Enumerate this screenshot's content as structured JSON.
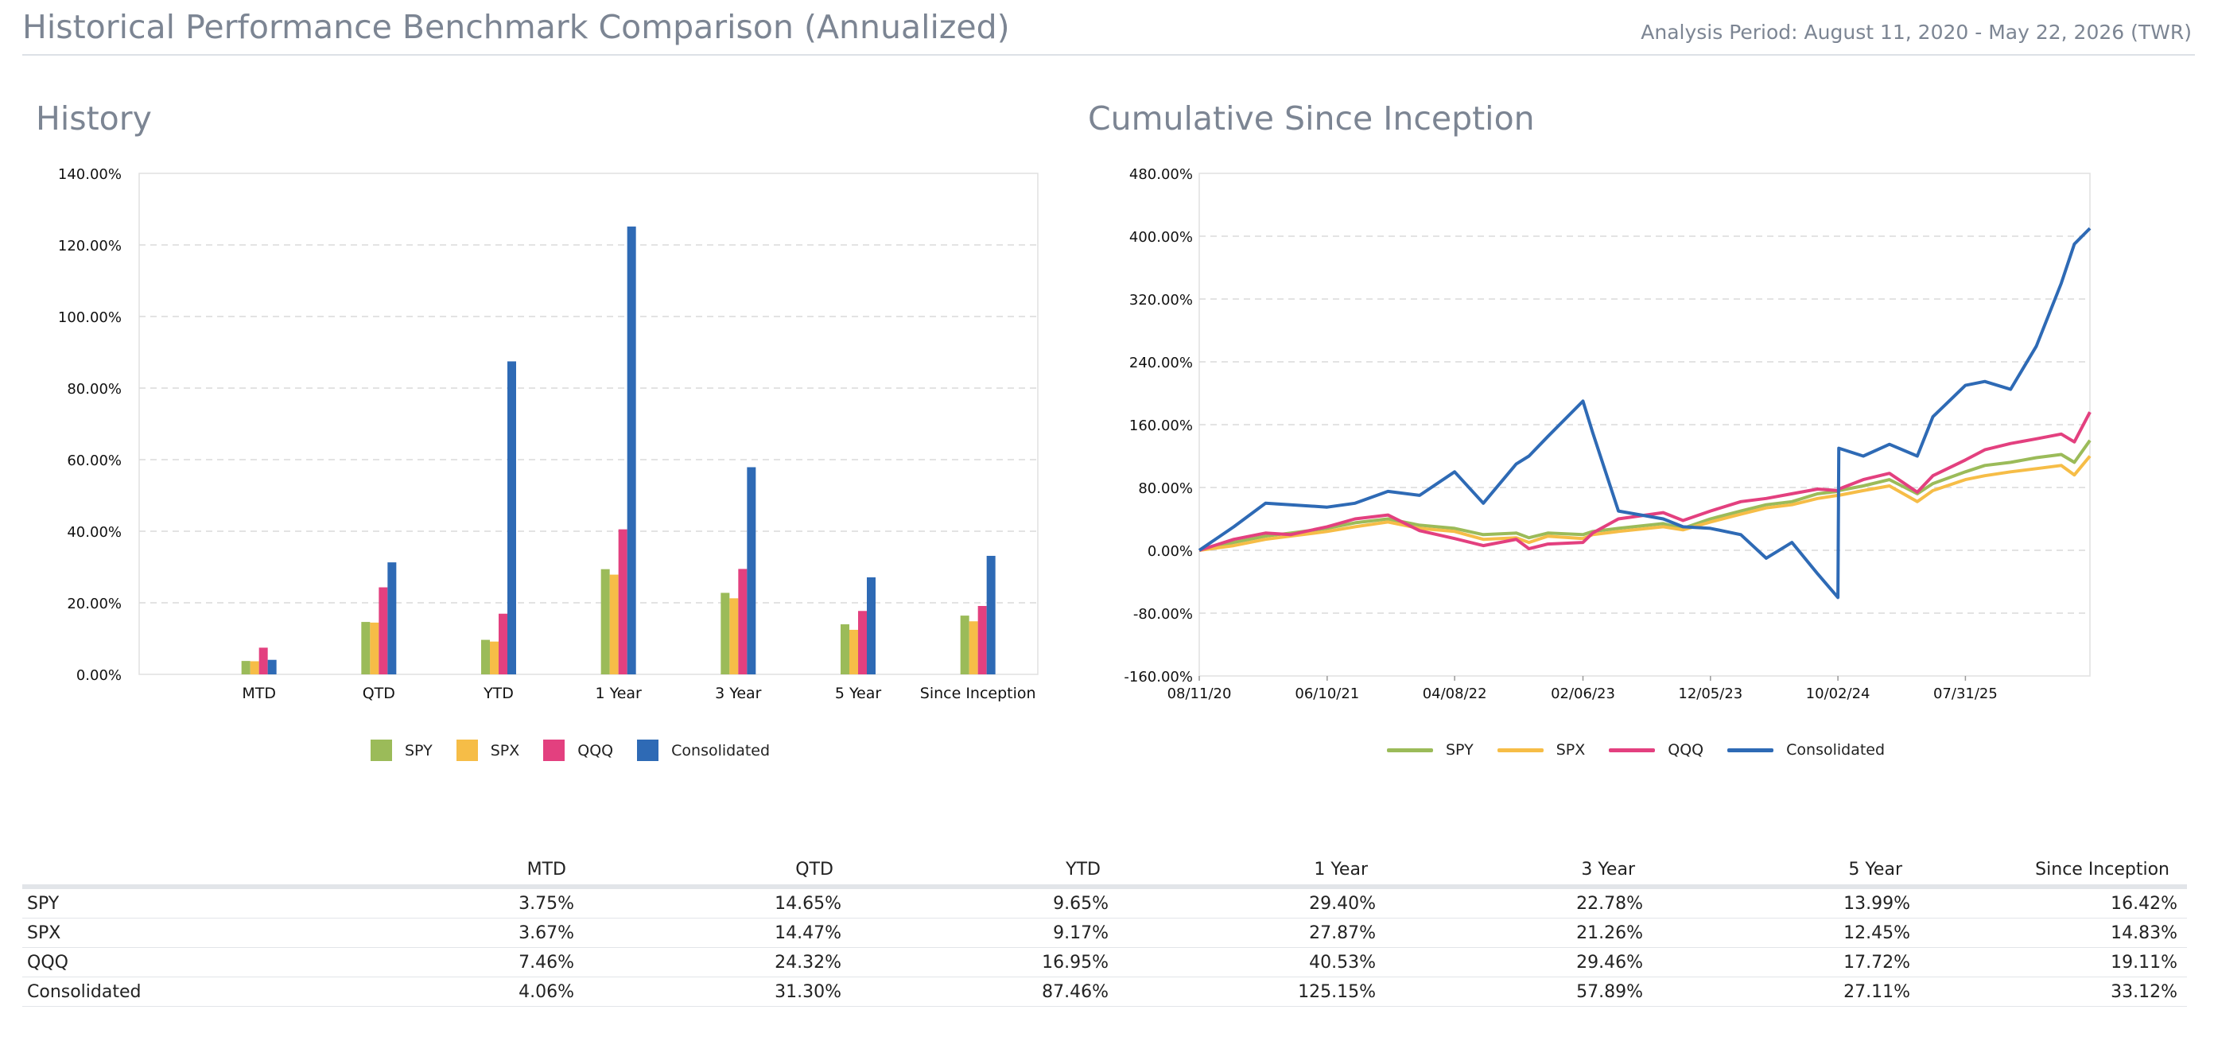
{
  "header": {
    "title": "Historical Performance Benchmark Comparison (Annualized)",
    "period": "Analysis Period: August 11, 2020 - May 22, 2026 (TWR)"
  },
  "history": {
    "title": "History"
  },
  "cumulative": {
    "title": "Cumulative Since Inception"
  },
  "colors": {
    "SPY": "#9bbb59",
    "SPX": "#f6bd47",
    "QQQ": "#e3407f",
    "Consolidated": "#2e6ab5"
  },
  "chart_data": [
    {
      "type": "bar",
      "title": "History",
      "categories": [
        "MTD",
        "QTD",
        "YTD",
        "1 Year",
        "3 Year",
        "5 Year",
        "Since Inception"
      ],
      "series": [
        {
          "name": "SPY",
          "values": [
            3.75,
            14.65,
            9.65,
            29.4,
            22.78,
            13.99,
            16.42
          ]
        },
        {
          "name": "SPX",
          "values": [
            3.67,
            14.47,
            9.17,
            27.87,
            21.26,
            12.45,
            14.83
          ]
        },
        {
          "name": "QQQ",
          "values": [
            7.46,
            24.32,
            16.95,
            40.53,
            29.46,
            17.72,
            19.11
          ]
        },
        {
          "name": "Consolidated",
          "values": [
            4.06,
            31.3,
            87.46,
            125.15,
            57.89,
            27.11,
            33.12
          ]
        }
      ],
      "ylim": [
        0,
        140
      ],
      "yticks": [
        "0.00%",
        "20.00%",
        "40.00%",
        "60.00%",
        "80.00%",
        "100.00%",
        "120.00%",
        "140.00%"
      ],
      "grid": true,
      "legend": "bottom"
    },
    {
      "type": "line",
      "title": "Cumulative Since Inception",
      "x": [
        "08/11/20",
        "11/01/20",
        "01/15/21",
        "03/15/21",
        "06/10/21",
        "08/15/21",
        "11/01/21",
        "01/15/22",
        "04/08/22",
        "06/15/22",
        "09/01/22",
        "10/01/22",
        "11/15/22",
        "02/06/23",
        "03/01/23",
        "05/01/23",
        "08/15/23",
        "10/01/23",
        "12/05/23",
        "02/15/24",
        "04/15/24",
        "06/15/24",
        "08/15/24",
        "10/02/24",
        "10/04/24",
        "12/01/24",
        "02/01/25",
        "04/08/25",
        "05/15/25",
        "07/31/25",
        "09/15/25",
        "11/15/25",
        "01/15/26",
        "03/15/26",
        "04/15/26",
        "05/22/26"
      ],
      "xticks": [
        "08/11/20",
        "06/10/21",
        "04/08/22",
        "02/06/23",
        "12/05/23",
        "10/02/24",
        "07/31/25"
      ],
      "series": [
        {
          "name": "SPY",
          "values": [
            0,
            10,
            18,
            22,
            28,
            35,
            40,
            32,
            28,
            20,
            22,
            16,
            22,
            20,
            24,
            28,
            34,
            28,
            40,
            50,
            58,
            62,
            72,
            75,
            76,
            82,
            90,
            72,
            85,
            100,
            108,
            112,
            118,
            122,
            112,
            140
          ]
        },
        {
          "name": "SPX",
          "values": [
            0,
            6,
            14,
            18,
            24,
            30,
            36,
            28,
            24,
            14,
            16,
            10,
            18,
            15,
            20,
            24,
            30,
            26,
            36,
            46,
            54,
            58,
            66,
            70,
            70,
            76,
            82,
            62,
            76,
            90,
            95,
            100,
            104,
            108,
            96,
            120
          ]
        },
        {
          "name": "QQQ",
          "values": [
            0,
            14,
            22,
            20,
            30,
            40,
            45,
            25,
            15,
            6,
            14,
            2,
            8,
            10,
            22,
            40,
            48,
            38,
            50,
            62,
            66,
            72,
            78,
            76,
            78,
            90,
            98,
            74,
            95,
            115,
            128,
            136,
            142,
            148,
            138,
            176
          ]
        },
        {
          "name": "Consolidated",
          "values": [
            0,
            30,
            60,
            58,
            55,
            60,
            75,
            70,
            100,
            60,
            110,
            120,
            145,
            190,
            150,
            50,
            40,
            30,
            28,
            20,
            -10,
            10,
            -30,
            -60,
            130,
            120,
            135,
            120,
            170,
            210,
            215,
            205,
            260,
            340,
            390,
            410
          ]
        }
      ],
      "ylim": [
        -160,
        480
      ],
      "yticks": [
        "-160.00%",
        "-80.00%",
        "0.00%",
        "80.00%",
        "160.00%",
        "240.00%",
        "320.00%",
        "400.00%",
        "480.00%"
      ],
      "grid": true,
      "legend": "bottom"
    }
  ],
  "table": {
    "columns": [
      "",
      "MTD",
      "QTD",
      "YTD",
      "1 Year",
      "3 Year",
      "5 Year",
      "Since Inception"
    ],
    "rows": [
      {
        "label": "SPY",
        "values": [
          "3.75%",
          "14.65%",
          "9.65%",
          "29.40%",
          "22.78%",
          "13.99%",
          "16.42%"
        ]
      },
      {
        "label": "SPX",
        "values": [
          "3.67%",
          "14.47%",
          "9.17%",
          "27.87%",
          "21.26%",
          "12.45%",
          "14.83%"
        ]
      },
      {
        "label": "QQQ",
        "values": [
          "7.46%",
          "24.32%",
          "16.95%",
          "40.53%",
          "29.46%",
          "17.72%",
          "19.11%"
        ]
      },
      {
        "label": "Consolidated",
        "values": [
          "4.06%",
          "31.30%",
          "87.46%",
          "125.15%",
          "57.89%",
          "27.11%",
          "33.12%"
        ]
      }
    ]
  }
}
